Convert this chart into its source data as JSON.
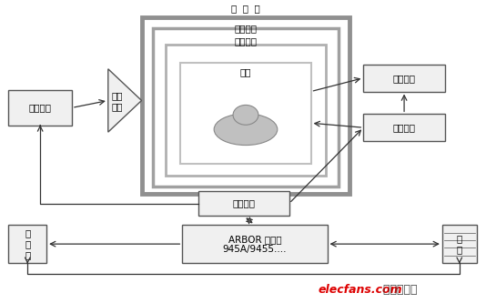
{
  "background_color": "#ffffff",
  "arrow_color": "#333333",
  "box_fill": "#f0f0f0",
  "box_edge": "#555555",
  "nested_colors": [
    "#909090",
    "#a0a0a0",
    "#b0b0b0",
    "#c0c0c0"
  ],
  "nested_lws": [
    3.5,
    2.5,
    2.0,
    1.5
  ],
  "watermark": "elecfans.com",
  "watermark2": " 电子发烧友",
  "labels": {
    "main_magnet": "主  磁  体",
    "gradient_coil": "梯度线圈",
    "rf_coil": "射频线圈",
    "body_box": "人体",
    "gradient_ctrl": "梯度控制",
    "gradient_drive_top": "梯度",
    "gradient_drive_bot": "驱动",
    "pulse_seq": "脉冲程序",
    "receive_ch": "接收通道",
    "transmit_ch": "发射通道",
    "arbor": "ARBOR 计算机",
    "arbor2": "945A/9455....",
    "display": "显\n示\n器",
    "storage": "储\n存"
  },
  "font_size": 7.5
}
